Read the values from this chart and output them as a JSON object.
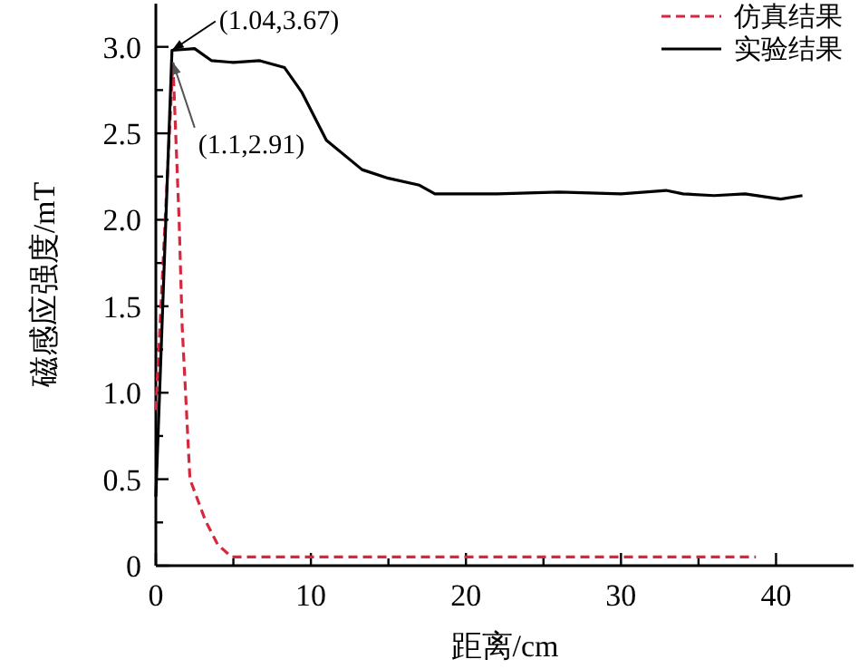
{
  "chart_data": {
    "type": "line",
    "xlabel": "距离/cm",
    "ylabel": "磁感应强度/mT",
    "xlim": [
      0,
      45
    ],
    "ylim": [
      0,
      3.25
    ],
    "xticks": [
      0,
      {
        "value": 5,
        "label": null
      },
      10,
      {
        "value": 15,
        "label": null
      },
      20,
      {
        "value": 25,
        "label": null
      },
      30,
      {
        "value": 35,
        "label": null
      },
      40
    ],
    "yticks": [
      {
        "value": 0,
        "label": "0"
      },
      {
        "value": 0.25,
        "label": null
      },
      0.5,
      {
        "value": 0.75,
        "label": null
      },
      {
        "value": 1,
        "label": "1.0"
      },
      {
        "value": 1.25,
        "label": null
      },
      1.5,
      {
        "value": 1.75,
        "label": null
      },
      {
        "value": 2,
        "label": "2.0"
      },
      {
        "value": 2.25,
        "label": null
      },
      2.5,
      {
        "value": 2.75,
        "label": null
      },
      {
        "value": 3,
        "label": "3.0"
      }
    ],
    "legend": "top right",
    "grid": false,
    "series": [
      {
        "name": "仿真结果",
        "color": "#d7263d",
        "line_style": "dashed",
        "x": [
          0,
          1.1,
          1.5,
          1.7,
          2.2,
          3.2,
          4.0,
          4.9,
          38.7
        ],
        "values": [
          0.9,
          2.91,
          2.0,
          1.38,
          0.5,
          0.26,
          0.12,
          0.05,
          0.05
        ]
      },
      {
        "name": "实验结果",
        "color": "#000000",
        "line_style": "solid",
        "x": [
          0,
          1.04,
          2.5,
          3.6,
          5,
          6.7,
          8.3,
          9.4,
          11,
          13.3,
          15,
          17,
          18,
          22,
          26,
          30,
          32.9,
          34,
          36,
          38,
          40.3,
          41.7
        ],
        "values": [
          0.4,
          2.98,
          2.99,
          2.92,
          2.91,
          2.92,
          2.88,
          2.74,
          2.46,
          2.29,
          2.24,
          2.2,
          2.15,
          2.15,
          2.16,
          2.15,
          2.17,
          2.15,
          2.14,
          2.15,
          2.12,
          2.14
        ]
      }
    ],
    "annotations": [
      {
        "text": "(1.04,3.67)",
        "x": 1.04,
        "y": 2.98
      },
      {
        "text": "(1.1,2.91)",
        "x": 1.1,
        "y": 2.91
      }
    ]
  }
}
